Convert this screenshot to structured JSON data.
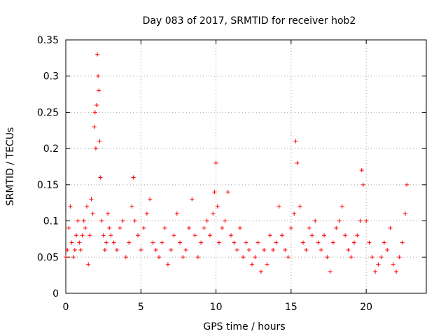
{
  "chart_data": {
    "type": "scatter",
    "title": "Day 083 of 2017, SRMTID for receiver hob2",
    "xlabel": "GPS time / hours",
    "ylabel": "SRMTID / TECUs",
    "xlim": [
      0,
      24
    ],
    "ylim": [
      0,
      0.35
    ],
    "x_ticks": [
      "0",
      "5",
      "10",
      "15",
      "20"
    ],
    "y_ticks": [
      "0",
      "0.05",
      "0.1",
      "0.15",
      "0.2",
      "0.25",
      "0.3",
      "0.35"
    ],
    "grid": true,
    "marker": "plus",
    "series": [
      {
        "name": "SRMTID",
        "color": "#ff0000",
        "x": [
          0.0,
          0.1,
          0.2,
          0.3,
          0.4,
          0.5,
          0.6,
          0.7,
          0.8,
          0.9,
          1.0,
          1.1,
          1.2,
          1.3,
          1.4,
          1.5,
          1.6,
          1.7,
          1.8,
          1.9,
          1.95,
          2.0,
          2.05,
          2.1,
          2.15,
          2.2,
          2.25,
          2.3,
          2.4,
          2.5,
          2.6,
          2.7,
          2.8,
          2.9,
          3.0,
          3.2,
          3.4,
          3.6,
          3.8,
          4.0,
          4.2,
          4.4,
          4.5,
          4.6,
          4.8,
          5.0,
          5.2,
          5.4,
          5.6,
          5.8,
          6.0,
          6.2,
          6.4,
          6.6,
          6.8,
          7.0,
          7.2,
          7.4,
          7.6,
          7.8,
          8.0,
          8.2,
          8.4,
          8.6,
          8.8,
          9.0,
          9.2,
          9.4,
          9.6,
          9.8,
          9.9,
          10.0,
          10.1,
          10.2,
          10.4,
          10.6,
          10.8,
          11.0,
          11.2,
          11.4,
          11.6,
          11.8,
          12.0,
          12.2,
          12.4,
          12.6,
          12.8,
          13.0,
          13.2,
          13.4,
          13.6,
          13.8,
          14.0,
          14.2,
          14.4,
          14.6,
          14.8,
          15.0,
          15.2,
          15.3,
          15.4,
          15.6,
          15.8,
          16.0,
          16.2,
          16.4,
          16.6,
          16.8,
          17.0,
          17.2,
          17.4,
          17.6,
          17.8,
          18.0,
          18.2,
          18.4,
          18.6,
          18.8,
          19.0,
          19.2,
          19.4,
          19.6,
          19.7,
          19.8,
          20.0,
          20.2,
          20.4,
          20.6,
          20.8,
          21.0,
          21.2,
          21.4,
          21.6,
          21.8,
          22.0,
          22.2,
          22.4,
          22.6,
          22.7
        ],
        "y": [
          0.05,
          0.06,
          0.09,
          0.12,
          0.07,
          0.05,
          0.06,
          0.08,
          0.1,
          0.07,
          0.06,
          0.08,
          0.1,
          0.09,
          0.12,
          0.04,
          0.08,
          0.13,
          0.11,
          0.23,
          0.25,
          0.2,
          0.26,
          0.33,
          0.3,
          0.28,
          0.21,
          0.16,
          0.1,
          0.08,
          0.06,
          0.07,
          0.11,
          0.09,
          0.08,
          0.07,
          0.06,
          0.09,
          0.1,
          0.05,
          0.07,
          0.12,
          0.16,
          0.1,
          0.08,
          0.06,
          0.09,
          0.11,
          0.13,
          0.07,
          0.06,
          0.05,
          0.07,
          0.09,
          0.04,
          0.06,
          0.08,
          0.11,
          0.07,
          0.05,
          0.06,
          0.09,
          0.13,
          0.08,
          0.05,
          0.07,
          0.09,
          0.1,
          0.08,
          0.11,
          0.14,
          0.18,
          0.12,
          0.07,
          0.09,
          0.1,
          0.14,
          0.08,
          0.07,
          0.06,
          0.09,
          0.05,
          0.07,
          0.06,
          0.04,
          0.05,
          0.07,
          0.03,
          0.06,
          0.04,
          0.08,
          0.06,
          0.07,
          0.12,
          0.08,
          0.06,
          0.05,
          0.09,
          0.11,
          0.21,
          0.18,
          0.12,
          0.07,
          0.06,
          0.09,
          0.08,
          0.1,
          0.07,
          0.06,
          0.08,
          0.05,
          0.03,
          0.07,
          0.09,
          0.1,
          0.12,
          0.08,
          0.06,
          0.05,
          0.07,
          0.08,
          0.1,
          0.17,
          0.15,
          0.1,
          0.07,
          0.05,
          0.03,
          0.04,
          0.05,
          0.07,
          0.06,
          0.09,
          0.04,
          0.03,
          0.05,
          0.07,
          0.11,
          0.15
        ]
      }
    ]
  }
}
